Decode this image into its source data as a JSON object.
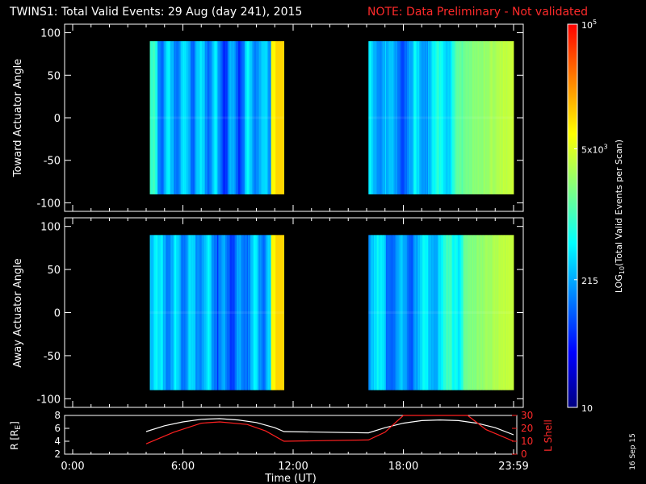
{
  "header": {
    "title": "TWINS1: Total Valid Events: 29 Aug (day 241), 2015",
    "note": "NOTE: Data Preliminary - Not validated",
    "note_color": "#ff2020"
  },
  "chart_data": [
    {
      "type": "heatmap",
      "name": "toward",
      "ylabel": "Toward Actuator Angle",
      "ylim": [
        -110,
        110
      ],
      "yticks": [
        "100",
        "50",
        "0",
        "-50",
        "-100"
      ],
      "xlim_hours": [
        0,
        24
      ],
      "angle_range": [
        -90,
        90
      ],
      "coverage_hours": [
        [
          4.2,
          11.5
        ],
        [
          16.1,
          24.0
        ]
      ]
    },
    {
      "type": "heatmap",
      "name": "away",
      "ylabel": "Away Actuator Angle",
      "ylim": [
        -110,
        110
      ],
      "yticks": [
        "100",
        "50",
        "0",
        "-50",
        "-100"
      ],
      "xlim_hours": [
        0,
        24
      ],
      "angle_range": [
        -90,
        90
      ],
      "coverage_hours": [
        [
          4.2,
          11.5
        ],
        [
          16.1,
          24.0
        ]
      ]
    },
    {
      "type": "line",
      "name": "orbit",
      "ylabel": "R [R",
      "ylabel_sub": "E",
      "ylabel_tail": "]",
      "ylim": [
        2,
        8
      ],
      "yticks": [
        "8",
        "6",
        "4",
        "2"
      ],
      "ylabel_right": "L Shell",
      "ylim_right": [
        0,
        30
      ],
      "yticks_right": [
        "30",
        "20",
        "10",
        "0"
      ],
      "xlabel": "Time (UT)",
      "xticks": [
        "0:00",
        "6:00",
        "12:00",
        "18:00",
        "23:59"
      ],
      "series": [
        {
          "color": "#ffffff",
          "axis": "left",
          "x": [
            4.0,
            5.0,
            6.0,
            7.0,
            8.0,
            9.0,
            10.0,
            11.0,
            11.5,
            16.1,
            17.0,
            18.0,
            19.0,
            20.0,
            21.0,
            22.0,
            23.0,
            24.0
          ],
          "y": [
            5.5,
            6.4,
            7.0,
            7.4,
            7.5,
            7.3,
            6.9,
            6.1,
            5.5,
            5.3,
            6.1,
            6.8,
            7.2,
            7.3,
            7.2,
            6.8,
            6.1,
            5.0
          ]
        },
        {
          "color": "#ff2020",
          "axis": "right",
          "x": [
            4.0,
            5.5,
            7.0,
            8.0,
            9.5,
            10.5,
            11.5,
            16.1,
            17.0,
            18.0,
            18.3,
            21.5,
            22.5,
            24.0
          ],
          "y": [
            8,
            17,
            24,
            25,
            23,
            18,
            10,
            11,
            17,
            30,
            30,
            30,
            19,
            10
          ]
        }
      ]
    }
  ],
  "colorbar": {
    "label_main": "LOG",
    "label_sub": "10",
    "label_rest": "(Total Valid Events per Scan)",
    "ticks": [
      {
        "base": "10",
        "exp": "5",
        "value": 100000
      },
      {
        "base": "5x10",
        "exp": "3",
        "value": 5000
      },
      {
        "base": "215",
        "exp": "",
        "value": 215
      },
      {
        "base": "10",
        "exp": "",
        "value": 10
      }
    ],
    "range": [
      10,
      100000
    ],
    "colors": [
      "#000080",
      "#0000ff",
      "#0080ff",
      "#00ffff",
      "#80ff80",
      "#ffff00",
      "#ff8000",
      "#ff0000"
    ]
  },
  "footer": {
    "date_stamp": "16 Sep 15"
  }
}
